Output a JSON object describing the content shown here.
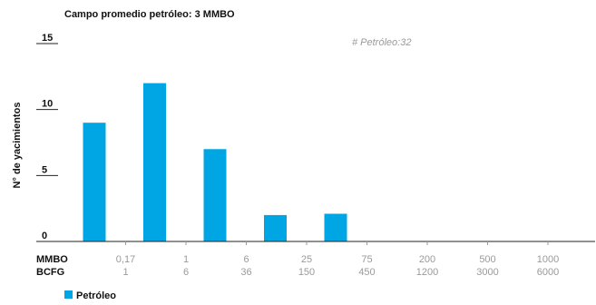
{
  "chart_data": {
    "type": "bar",
    "title": "Campo promedio petróleo: 3 MMBO",
    "ylabel": "N° de yacimientos",
    "xlabel": "",
    "ylim": [
      0,
      15
    ],
    "yticks": [
      "15",
      "10",
      "5",
      "0"
    ],
    "annotation": "# Petróleo:32",
    "x_rows": [
      {
        "label": "MMBO",
        "ticks": [
          "0,17",
          "1",
          "6",
          "25",
          "75",
          "200",
          "500",
          "1000"
        ]
      },
      {
        "label": "BCFG",
        "ticks": [
          "1",
          "6",
          "36",
          "150",
          "450",
          "1200",
          "3000",
          "6000"
        ]
      }
    ],
    "categories": [
      "<0,17",
      "0,17–1",
      "1–6",
      "6–25",
      "25–75",
      "75–200",
      "200–500",
      "500–1000"
    ],
    "series": [
      {
        "name": "Petróleo",
        "color": "#00a6e3",
        "values": [
          9,
          12,
          7,
          2,
          2.1,
          0,
          0,
          0
        ]
      }
    ],
    "legend": "bottom-left",
    "grid": false
  }
}
